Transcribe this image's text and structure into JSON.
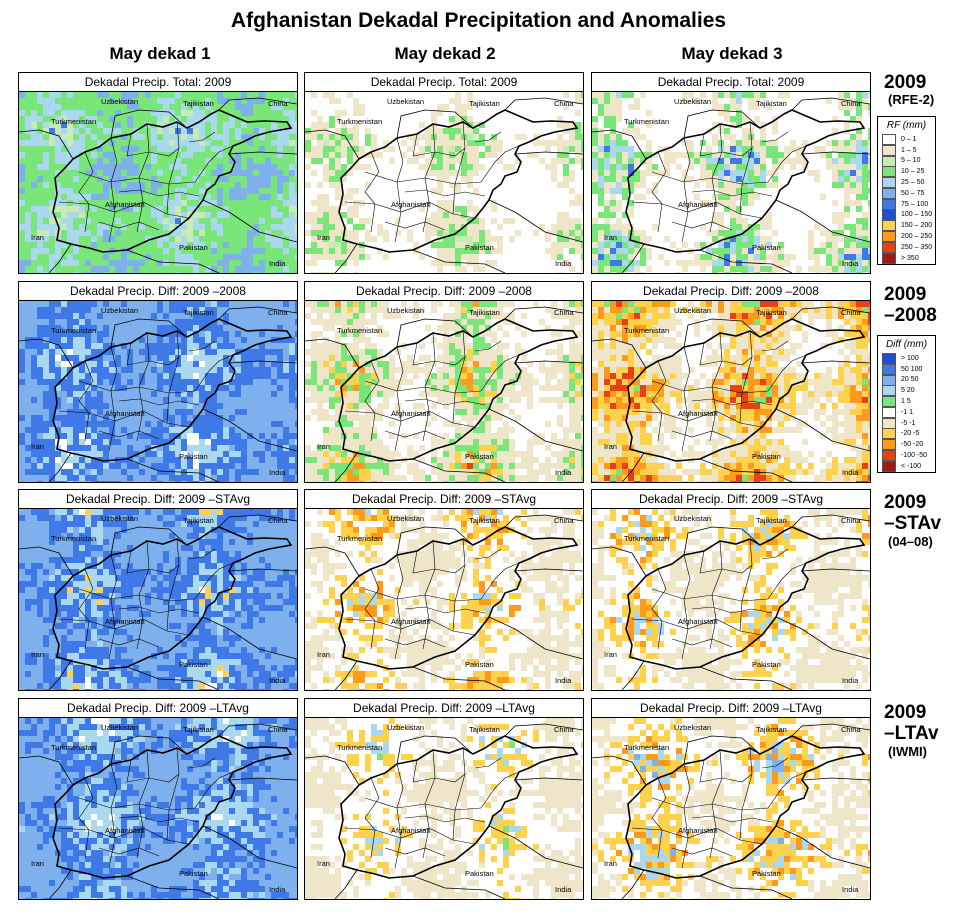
{
  "title": "Afghanistan Dekadal Precipitation and Anomalies",
  "columns": [
    "May dekad 1",
    "May dekad 2",
    "May dekad 3"
  ],
  "rows": [
    {
      "label_main": "2009",
      "label_sub": "(RFE-2)",
      "panel_title": "Dekadal Precip. Total: 2009",
      "palette": [
        [
          "#ffffff",
          0.3
        ],
        [
          "#efe6c9",
          0.12
        ],
        [
          "#c6ecb3",
          0.15
        ],
        [
          "#7ae67a",
          0.2
        ],
        [
          "#a9d8ef",
          0.13
        ],
        [
          "#7fb0ee",
          0.1
        ]
      ],
      "palettes": [
        [
          [
            "#7fb0ee",
            0.3
          ],
          [
            "#7ae67a",
            0.3
          ],
          [
            "#a9d8ef",
            0.25
          ],
          [
            "#c6ecb3",
            0.1
          ],
          [
            "#3f79e8",
            0.05
          ]
        ],
        [
          [
            "#ffffff",
            0.55
          ],
          [
            "#efe6c9",
            0.2
          ],
          [
            "#7ae67a",
            0.15
          ],
          [
            "#c6ecb3",
            0.1
          ]
        ],
        [
          [
            "#ffffff",
            0.5
          ],
          [
            "#efe6c9",
            0.15
          ],
          [
            "#7ae67a",
            0.15
          ],
          [
            "#a9d8ef",
            0.1
          ],
          [
            "#3f79e8",
            0.1
          ]
        ]
      ]
    },
    {
      "label_main": "2009",
      "label_sub": "–2008",
      "panel_title": "Dekadal Precip. Diff:  2009 –2008",
      "palettes": [
        [
          [
            "#7fb0ee",
            0.45
          ],
          [
            "#3f79e8",
            0.25
          ],
          [
            "#a9d8ef",
            0.2
          ],
          [
            "#ffffff",
            0.1
          ]
        ],
        [
          [
            "#ffffff",
            0.4
          ],
          [
            "#efe6c9",
            0.25
          ],
          [
            "#7ae67a",
            0.15
          ],
          [
            "#ffd24d",
            0.1
          ],
          [
            "#ff9a1a",
            0.07
          ],
          [
            "#e8411a",
            0.03
          ]
        ],
        [
          [
            "#ffffff",
            0.35
          ],
          [
            "#efe6c9",
            0.2
          ],
          [
            "#ffd24d",
            0.15
          ],
          [
            "#ff9a1a",
            0.12
          ],
          [
            "#e8411a",
            0.08
          ],
          [
            "#7ae67a",
            0.1
          ]
        ]
      ]
    },
    {
      "label_main": "2009",
      "label_sub": "–STAv",
      "label_sub2": "(04–08)",
      "panel_title": "Dekadal Precip. Diff:  2009 –STAvg",
      "palettes": [
        [
          [
            "#7fb0ee",
            0.45
          ],
          [
            "#3f79e8",
            0.25
          ],
          [
            "#a9d8ef",
            0.2
          ],
          [
            "#ffd24d",
            0.05
          ],
          [
            "#ffffff",
            0.05
          ]
        ],
        [
          [
            "#efe6c9",
            0.4
          ],
          [
            "#ffffff",
            0.25
          ],
          [
            "#ffd24d",
            0.15
          ],
          [
            "#ff9a1a",
            0.1
          ],
          [
            "#a9d8ef",
            0.1
          ]
        ],
        [
          [
            "#efe6c9",
            0.4
          ],
          [
            "#ffffff",
            0.25
          ],
          [
            "#ffd24d",
            0.15
          ],
          [
            "#ff9a1a",
            0.08
          ],
          [
            "#a9d8ef",
            0.12
          ]
        ]
      ]
    },
    {
      "label_main": "2009",
      "label_sub": "–LTAv",
      "label_sub2": "(IWMI)",
      "panel_title": "Dekadal Precip. Diff:  2009 –LTAvg",
      "palettes": [
        [
          [
            "#7fb0ee",
            0.45
          ],
          [
            "#3f79e8",
            0.2
          ],
          [
            "#a9d8ef",
            0.25
          ],
          [
            "#ffffff",
            0.1
          ]
        ],
        [
          [
            "#efe6c9",
            0.4
          ],
          [
            "#ffffff",
            0.3
          ],
          [
            "#ffd24d",
            0.15
          ],
          [
            "#a9d8ef",
            0.1
          ],
          [
            "#7ae67a",
            0.05
          ]
        ],
        [
          [
            "#efe6c9",
            0.35
          ],
          [
            "#ffffff",
            0.25
          ],
          [
            "#ffd24d",
            0.15
          ],
          [
            "#ff9a1a",
            0.05
          ],
          [
            "#a9d8ef",
            0.12
          ],
          [
            "#7fb0ee",
            0.08
          ]
        ]
      ]
    }
  ],
  "map_labels": {
    "uzbekistan": "Uzbekistan",
    "tajikistan": "Tajikistan",
    "china": "China",
    "turkmenistan": "Turkmenistan",
    "afghanistan": "Afghanistan",
    "iran": "Iran",
    "pakistan": "Pakistan",
    "india": "India"
  },
  "legend_rf": {
    "title": "RF (mm)",
    "items": [
      {
        "label": "0 – 1",
        "color": "#ffffff"
      },
      {
        "label": "1 – 5",
        "color": "#efe6c9"
      },
      {
        "label": "5 – 10",
        "color": "#c6ecb3"
      },
      {
        "label": "10 – 25",
        "color": "#7ae67a"
      },
      {
        "label": "25 – 50",
        "color": "#a9d8ef"
      },
      {
        "label": "50 – 75",
        "color": "#7fb0ee"
      },
      {
        "label": "75 – 100",
        "color": "#3f79e8"
      },
      {
        "label": "100 – 150",
        "color": "#1f4fd0"
      },
      {
        "label": "150 – 200",
        "color": "#ffd24d"
      },
      {
        "label": "200 – 250",
        "color": "#ff9a1a"
      },
      {
        "label": "250 – 350",
        "color": "#e8411a"
      },
      {
        "label": "> 350",
        "color": "#a01818"
      }
    ]
  },
  "legend_diff": {
    "title": "Diff (mm)",
    "items": [
      {
        "label": "> 100",
        "color": "#1f4fd0"
      },
      {
        "label": "50  100",
        "color": "#3f79e8"
      },
      {
        "label": "20  50",
        "color": "#7fb0ee"
      },
      {
        "label": "5  20",
        "color": "#a9d8ef"
      },
      {
        "label": "1  5",
        "color": "#7ae67a"
      },
      {
        "label": "-1  1",
        "color": "#ffffff"
      },
      {
        "label": "-5  -1",
        "color": "#efe6c9"
      },
      {
        "label": "-20  -5",
        "color": "#ffd24d"
      },
      {
        "label": "-50  -20",
        "color": "#ff9a1a"
      },
      {
        "label": "-100  -50",
        "color": "#e8411a"
      },
      {
        "label": "< -100",
        "color": "#a01818"
      }
    ]
  }
}
